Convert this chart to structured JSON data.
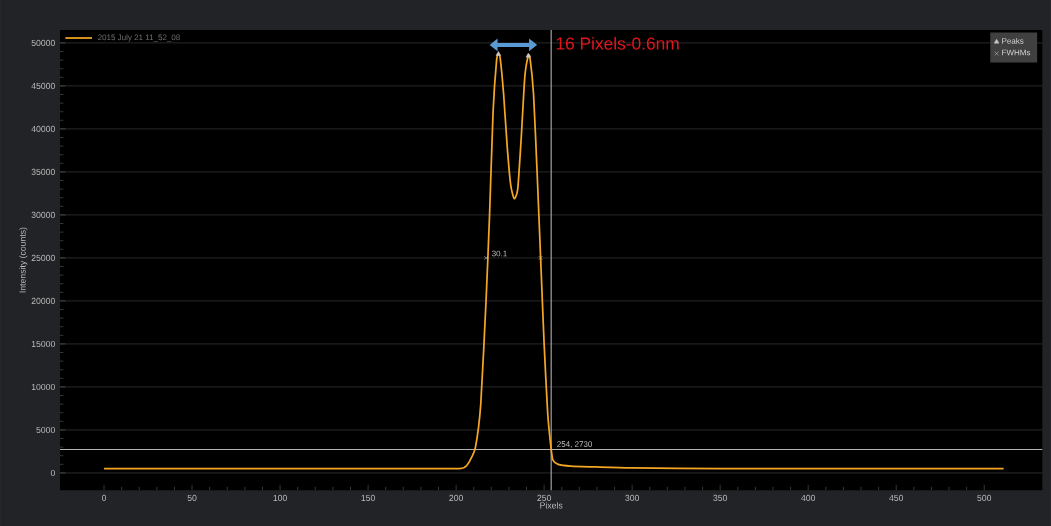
{
  "chart_data": {
    "type": "line",
    "xlabel": "Pixels",
    "ylabel": "Intensity (counts)",
    "xlim": [
      -25,
      533
    ],
    "ylim": [
      -2000,
      51500
    ],
    "xticks": [
      0,
      50,
      100,
      150,
      200,
      250,
      300,
      350,
      400,
      450,
      500
    ],
    "yticks": [
      0,
      5000,
      10000,
      15000,
      20000,
      25000,
      30000,
      35000,
      40000,
      45000,
      50000
    ],
    "grid": "y",
    "legend": "top right",
    "series": [
      {
        "name": "2015 July 21 11_52_08",
        "color": "#f5a623",
        "x": [
          0,
          50,
          100,
          150,
          200,
          205,
          208,
          211,
          214,
          217,
          219,
          221,
          223,
          224,
          225,
          227,
          229,
          231,
          233,
          235,
          237,
          239,
          241,
          242,
          244,
          246,
          248,
          250,
          252,
          254,
          255,
          258,
          265,
          280,
          300,
          350,
          400,
          450,
          500,
          511
        ],
        "values": [
          500,
          500,
          500,
          500,
          500,
          700,
          1500,
          3000,
          8000,
          20000,
          30000,
          42000,
          48000,
          48700,
          48300,
          44000,
          38000,
          33500,
          31900,
          33000,
          39000,
          46000,
          48500,
          48200,
          44000,
          35000,
          25000,
          15000,
          7000,
          2730,
          1500,
          1000,
          800,
          700,
          600,
          500,
          500,
          500,
          500,
          500
        ]
      },
      {
        "name": "Peaks",
        "type": "scatter",
        "marker": "triangle",
        "color": "#c8c8c8",
        "x": [
          224,
          241
        ],
        "values": [
          48700,
          48500
        ]
      },
      {
        "name": "FWHMs",
        "type": "scatter",
        "marker": "cross",
        "color": "#c8c8c8",
        "x": [
          217,
          248
        ],
        "values": [
          25000,
          25000
        ]
      }
    ],
    "ref_lines": [
      {
        "axis": "x",
        "value": 254,
        "color": "#b4b4b4"
      },
      {
        "axis": "y",
        "value": 2730,
        "color": "#b4b4b4"
      }
    ],
    "annotations": [
      "16 Pixels-0.6nm",
      {
        "text": "30.1",
        "x": 217,
        "y": 25000
      },
      {
        "text": "254, 2730",
        "x": 254,
        "y": 2730
      }
    ]
  }
}
